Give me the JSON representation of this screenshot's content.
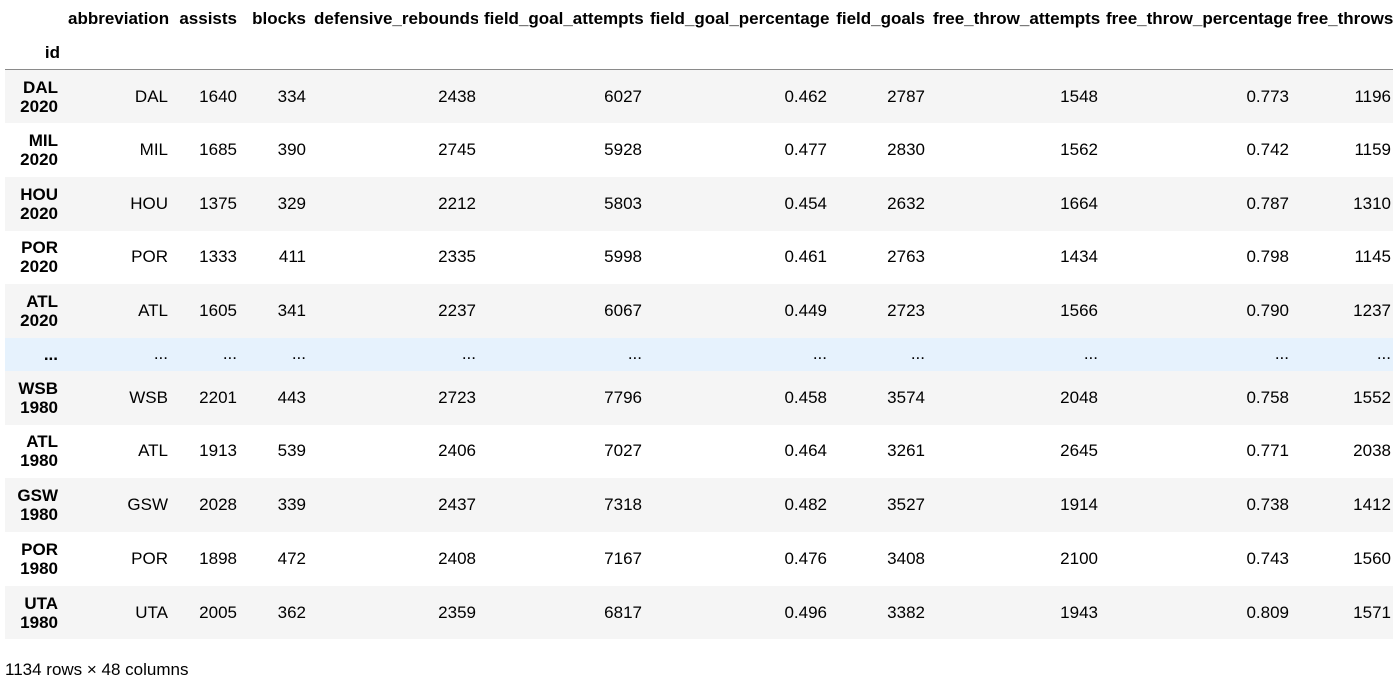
{
  "table": {
    "index_name": "id",
    "columns": [
      "abbreviation",
      "assists",
      "blocks",
      "defensive_rebounds",
      "field_goal_attempts",
      "field_goal_percentage",
      "field_goals",
      "free_throw_attempts",
      "free_throw_percentage",
      "free_throws"
    ],
    "rows": [
      {
        "id": [
          "DAL",
          "2020"
        ],
        "cells": [
          "DAL",
          "1640",
          "334",
          "2438",
          "6027",
          "0.462",
          "2787",
          "1548",
          "0.773",
          "1196"
        ]
      },
      {
        "id": [
          "MIL",
          "2020"
        ],
        "cells": [
          "MIL",
          "1685",
          "390",
          "2745",
          "5928",
          "0.477",
          "2830",
          "1562",
          "0.742",
          "1159"
        ]
      },
      {
        "id": [
          "HOU",
          "2020"
        ],
        "cells": [
          "HOU",
          "1375",
          "329",
          "2212",
          "5803",
          "0.454",
          "2632",
          "1664",
          "0.787",
          "1310"
        ]
      },
      {
        "id": [
          "POR",
          "2020"
        ],
        "cells": [
          "POR",
          "1333",
          "411",
          "2335",
          "5998",
          "0.461",
          "2763",
          "1434",
          "0.798",
          "1145"
        ]
      },
      {
        "id": [
          "ATL",
          "2020"
        ],
        "cells": [
          "ATL",
          "1605",
          "341",
          "2237",
          "6067",
          "0.449",
          "2723",
          "1566",
          "0.790",
          "1237"
        ]
      },
      {
        "ellipsis": true,
        "id": [
          "...",
          ""
        ],
        "cells": [
          "...",
          "...",
          "...",
          "...",
          "...",
          "...",
          "...",
          "...",
          "...",
          "..."
        ]
      },
      {
        "id": [
          "WSB",
          "1980"
        ],
        "cells": [
          "WSB",
          "2201",
          "443",
          "2723",
          "7796",
          "0.458",
          "3574",
          "2048",
          "0.758",
          "1552"
        ]
      },
      {
        "id": [
          "ATL",
          "1980"
        ],
        "cells": [
          "ATL",
          "1913",
          "539",
          "2406",
          "7027",
          "0.464",
          "3261",
          "2645",
          "0.771",
          "2038"
        ]
      },
      {
        "id": [
          "GSW",
          "1980"
        ],
        "cells": [
          "GSW",
          "2028",
          "339",
          "2437",
          "7318",
          "0.482",
          "3527",
          "1914",
          "0.738",
          "1412"
        ]
      },
      {
        "id": [
          "POR",
          "1980"
        ],
        "cells": [
          "POR",
          "1898",
          "472",
          "2408",
          "7167",
          "0.476",
          "3408",
          "2100",
          "0.743",
          "1560"
        ]
      },
      {
        "id": [
          "UTA",
          "1980"
        ],
        "cells": [
          "UTA",
          "2005",
          "362",
          "2359",
          "6817",
          "0.496",
          "3382",
          "1943",
          "0.809",
          "1571"
        ]
      }
    ]
  },
  "footer": {
    "shape_text": "1134 rows × 48 columns"
  }
}
